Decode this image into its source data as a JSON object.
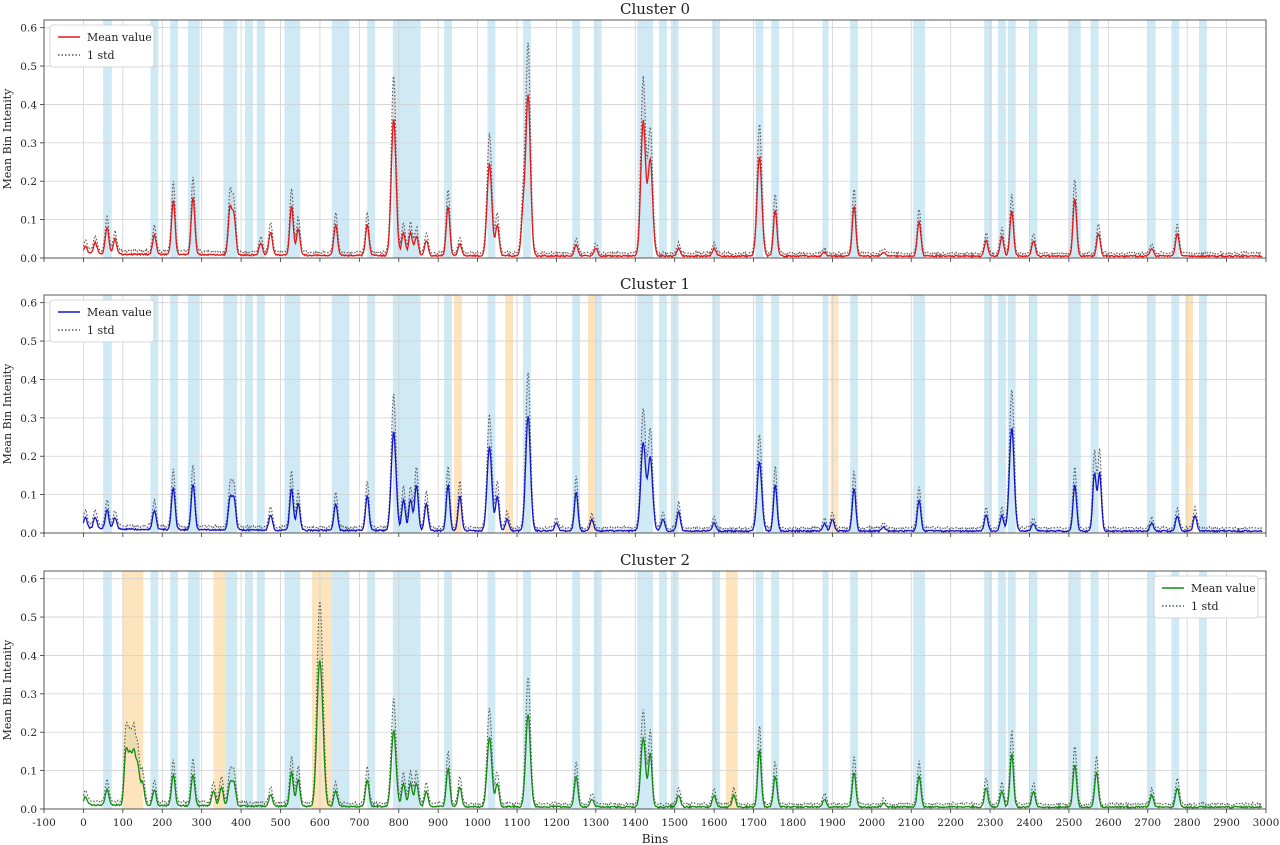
{
  "figure": {
    "xlabel": "Bins",
    "ylabel": "Mean Bin Intenity",
    "x_ticks": [
      -100,
      0,
      100,
      200,
      300,
      400,
      500,
      600,
      700,
      800,
      900,
      1000,
      1100,
      1200,
      1300,
      1400,
      1500,
      1600,
      1700,
      1800,
      1900,
      2000,
      2100,
      2200,
      2300,
      2400,
      2500,
      2600,
      2700,
      2800,
      2900,
      3000
    ],
    "y_ticks": [
      0.0,
      0.1,
      0.2,
      0.3,
      0.4,
      0.5,
      0.6
    ],
    "y_tick_labels": [
      "0.0",
      "0.1",
      "0.2",
      "0.3",
      "0.4",
      "0.5",
      "0.6"
    ],
    "xlim": [
      -100,
      3000
    ],
    "ylim": [
      0,
      0.62
    ]
  },
  "chart_data": [
    {
      "type": "line",
      "title": "Cluster 0",
      "legend": {
        "placement": "top-left",
        "mean_label": "Mean value",
        "std_label": "1 std"
      },
      "color": "#e0191b",
      "series": [
        {
          "name": "Mean value",
          "peaks": [
            [
              5,
              0.02
            ],
            [
              30,
              0.03
            ],
            [
              60,
              0.07
            ],
            [
              80,
              0.04
            ],
            [
              180,
              0.05
            ],
            [
              228,
              0.14
            ],
            [
              278,
              0.15
            ],
            [
              372,
              0.12
            ],
            [
              382,
              0.1
            ],
            [
              450,
              0.03
            ],
            [
              475,
              0.06
            ],
            [
              528,
              0.13
            ],
            [
              545,
              0.07
            ],
            [
              640,
              0.08
            ],
            [
              720,
              0.08
            ],
            [
              787,
              0.36
            ],
            [
              812,
              0.06
            ],
            [
              830,
              0.06
            ],
            [
              845,
              0.05
            ],
            [
              870,
              0.04
            ],
            [
              925,
              0.13
            ],
            [
              955,
              0.03
            ],
            [
              1030,
              0.24
            ],
            [
              1050,
              0.08
            ],
            [
              1115,
              0.1
            ],
            [
              1128,
              0.42
            ],
            [
              1250,
              0.03
            ],
            [
              1300,
              0.02
            ],
            [
              1420,
              0.35
            ],
            [
              1438,
              0.25
            ],
            [
              1510,
              0.02
            ],
            [
              1600,
              0.02
            ],
            [
              1715,
              0.26
            ],
            [
              1755,
              0.12
            ],
            [
              1880,
              0.01
            ],
            [
              1955,
              0.13
            ],
            [
              2030,
              0.01
            ],
            [
              2120,
              0.09
            ],
            [
              2290,
              0.04
            ],
            [
              2330,
              0.05
            ],
            [
              2355,
              0.12
            ],
            [
              2410,
              0.04
            ],
            [
              2515,
              0.15
            ],
            [
              2575,
              0.06
            ],
            [
              2710,
              0.02
            ],
            [
              2775,
              0.06
            ]
          ]
        },
        {
          "name": "1 std",
          "std_ratio": 1.3
        }
      ],
      "highlight_orange": []
    },
    {
      "type": "line",
      "title": "Cluster 1",
      "legend": {
        "placement": "top-left",
        "mean_label": "Mean value",
        "std_label": "1 std"
      },
      "color": "#1414c8",
      "series": [
        {
          "name": "Mean value",
          "peaks": [
            [
              5,
              0.03
            ],
            [
              30,
              0.03
            ],
            [
              60,
              0.05
            ],
            [
              80,
              0.03
            ],
            [
              180,
              0.05
            ],
            [
              228,
              0.11
            ],
            [
              278,
              0.12
            ],
            [
              372,
              0.08
            ],
            [
              382,
              0.08
            ],
            [
              475,
              0.04
            ],
            [
              528,
              0.11
            ],
            [
              545,
              0.07
            ],
            [
              640,
              0.07
            ],
            [
              720,
              0.09
            ],
            [
              787,
              0.26
            ],
            [
              812,
              0.08
            ],
            [
              830,
              0.08
            ],
            [
              845,
              0.12
            ],
            [
              870,
              0.07
            ],
            [
              925,
              0.12
            ],
            [
              955,
              0.09
            ],
            [
              1030,
              0.22
            ],
            [
              1050,
              0.09
            ],
            [
              1075,
              0.03
            ],
            [
              1128,
              0.3
            ],
            [
              1200,
              0.02
            ],
            [
              1250,
              0.1
            ],
            [
              1290,
              0.03
            ],
            [
              1420,
              0.23
            ],
            [
              1438,
              0.19
            ],
            [
              1470,
              0.03
            ],
            [
              1510,
              0.05
            ],
            [
              1600,
              0.02
            ],
            [
              1715,
              0.18
            ],
            [
              1755,
              0.12
            ],
            [
              1880,
              0.02
            ],
            [
              1900,
              0.03
            ],
            [
              1955,
              0.11
            ],
            [
              2030,
              0.01
            ],
            [
              2120,
              0.08
            ],
            [
              2290,
              0.04
            ],
            [
              2330,
              0.04
            ],
            [
              2355,
              0.27
            ],
            [
              2410,
              0.02
            ],
            [
              2515,
              0.12
            ],
            [
              2565,
              0.15
            ],
            [
              2578,
              0.15
            ],
            [
              2710,
              0.02
            ],
            [
              2775,
              0.04
            ],
            [
              2820,
              0.04
            ]
          ]
        },
        {
          "name": "1 std",
          "std_ratio": 1.35
        }
      ],
      "highlight_orange": [
        [
          940,
          960
        ],
        [
          1070,
          1090
        ],
        [
          1280,
          1300
        ],
        [
          1895,
          1915
        ],
        [
          2795,
          2815
        ]
      ]
    },
    {
      "type": "line",
      "title": "Cluster 2",
      "legend": {
        "placement": "top-right",
        "mean_label": "Mean value",
        "std_label": "1 std"
      },
      "color": "#138a13",
      "series": [
        {
          "name": "Mean value",
          "peaks": [
            [
              5,
              0.02
            ],
            [
              60,
              0.04
            ],
            [
              108,
              0.14
            ],
            [
              118,
              0.12
            ],
            [
              128,
              0.13
            ],
            [
              138,
              0.1
            ],
            [
              150,
              0.06
            ],
            [
              180,
              0.04
            ],
            [
              228,
              0.08
            ],
            [
              278,
              0.08
            ],
            [
              330,
              0.04
            ],
            [
              350,
              0.05
            ],
            [
              372,
              0.06
            ],
            [
              382,
              0.06
            ],
            [
              475,
              0.03
            ],
            [
              528,
              0.09
            ],
            [
              545,
              0.07
            ],
            [
              597,
              0.28
            ],
            [
              605,
              0.19
            ],
            [
              640,
              0.04
            ],
            [
              720,
              0.07
            ],
            [
              787,
              0.2
            ],
            [
              812,
              0.06
            ],
            [
              830,
              0.06
            ],
            [
              845,
              0.06
            ],
            [
              870,
              0.04
            ],
            [
              925,
              0.1
            ],
            [
              955,
              0.05
            ],
            [
              1030,
              0.18
            ],
            [
              1050,
              0.06
            ],
            [
              1128,
              0.24
            ],
            [
              1250,
              0.08
            ],
            [
              1290,
              0.02
            ],
            [
              1420,
              0.18
            ],
            [
              1438,
              0.14
            ],
            [
              1510,
              0.03
            ],
            [
              1600,
              0.03
            ],
            [
              1650,
              0.03
            ],
            [
              1715,
              0.15
            ],
            [
              1755,
              0.08
            ],
            [
              1880,
              0.02
            ],
            [
              1955,
              0.09
            ],
            [
              2030,
              0.01
            ],
            [
              2120,
              0.08
            ],
            [
              2290,
              0.05
            ],
            [
              2330,
              0.04
            ],
            [
              2355,
              0.14
            ],
            [
              2410,
              0.04
            ],
            [
              2515,
              0.11
            ],
            [
              2570,
              0.09
            ],
            [
              2710,
              0.03
            ],
            [
              2775,
              0.05
            ]
          ]
        },
        {
          "name": "1 std",
          "std_ratio": 1.38
        }
      ],
      "highlight_orange": [
        [
          100,
          152
        ],
        [
          330,
          360
        ],
        [
          580,
          630
        ],
        [
          1630,
          1660
        ]
      ]
    }
  ],
  "highlight_blue": [
    [
      50,
      72
    ],
    [
      170,
      190
    ],
    [
      220,
      240
    ],
    [
      265,
      295
    ],
    [
      355,
      390
    ],
    [
      410,
      430
    ],
    [
      440,
      460
    ],
    [
      510,
      550
    ],
    [
      630,
      675
    ],
    [
      720,
      740
    ],
    [
      785,
      855
    ],
    [
      915,
      935
    ],
    [
      1025,
      1045
    ],
    [
      1115,
      1135
    ],
    [
      1240,
      1260
    ],
    [
      1295,
      1315
    ],
    [
      1405,
      1445
    ],
    [
      1460,
      1480
    ],
    [
      1490,
      1510
    ],
    [
      1595,
      1615
    ],
    [
      1705,
      1725
    ],
    [
      1745,
      1765
    ],
    [
      1875,
      1890
    ],
    [
      1945,
      1965
    ],
    [
      2105,
      2135
    ],
    [
      2285,
      2305
    ],
    [
      2320,
      2340
    ],
    [
      2345,
      2365
    ],
    [
      2400,
      2420
    ],
    [
      2500,
      2530
    ],
    [
      2555,
      2575
    ],
    [
      2700,
      2720
    ],
    [
      2760,
      2780
    ],
    [
      2830,
      2850
    ]
  ],
  "colors": {
    "blue_span": "#cfe9f5",
    "orange_span": "#fde4bc",
    "std_line": "#555555",
    "grid": "#d2d2d2"
  }
}
